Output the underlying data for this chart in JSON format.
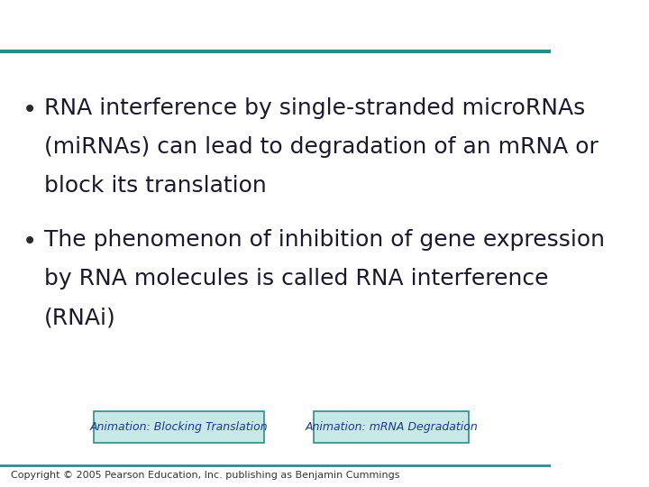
{
  "background_color": "#ffffff",
  "top_line_color": "#2E8B8B",
  "bottom_line_color": "#2E8B8B",
  "bullet1_line1": "RNA interference by single-stranded microRNAs",
  "bullet1_line2": "(miRNAs) can lead to degradation of an mRNA or",
  "bullet1_line3": "block its translation",
  "bullet2_line1": "The phenomenon of inhibition of gene expression",
  "bullet2_line2": "by RNA molecules is called RNA interference",
  "bullet2_line3": "(RNAi)",
  "text_color": "#1a1a2e",
  "bullet_color": "#2a2a2a",
  "font_size": 18,
  "button1_text": "Animation: Blocking Translation",
  "button2_text": "Animation: mRNA Degradation",
  "button_text_color": "#1a3a8a",
  "button_bg_color": "#c8e8e8",
  "button_border_color": "#2E8B8B",
  "copyright_text": "Copyright © 2005 Pearson Education, Inc. publishing as Benjamin Cummings",
  "copyright_color": "#333333",
  "copyright_fontsize": 8
}
